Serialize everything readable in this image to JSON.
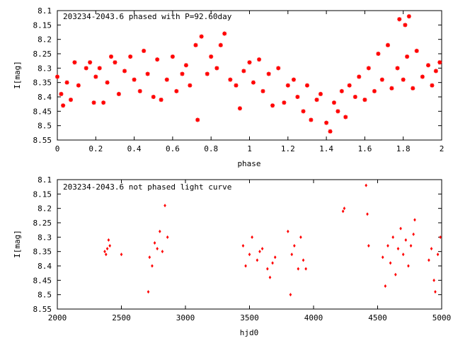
{
  "colors": {
    "marker": "#ff0000",
    "axis": "#000000",
    "background": "#ffffff"
  },
  "chart_data": [
    {
      "type": "scatter",
      "title": "203234-2043.6 phased with P=92.60day",
      "xlabel": "phase",
      "ylabel": "I[mag]",
      "xlim": [
        0,
        2
      ],
      "ylim": [
        8.55,
        8.1
      ],
      "y_inverted": true,
      "xticks": [
        0,
        0.2,
        0.4,
        0.6,
        0.8,
        1,
        1.2,
        1.4,
        1.6,
        1.8,
        2
      ],
      "xtick_labels": [
        "0",
        "0.2",
        "0.4",
        "0.6",
        "0.8",
        "1",
        "1.2",
        "1.4",
        "1.6",
        "1.8",
        "2"
      ],
      "yticks": [
        8.1,
        8.15,
        8.2,
        8.25,
        8.3,
        8.35,
        8.4,
        8.45,
        8.5,
        8.55
      ],
      "ytick_labels": [
        "8.1",
        "8.15",
        "8.2",
        "8.25",
        "8.3",
        "8.35",
        "8.4",
        "8.45",
        "8.5",
        "8.55"
      ],
      "grid": false,
      "marker": "asterisk",
      "series": [
        {
          "points": [
            [
              0.0,
              8.33
            ],
            [
              0.02,
              8.39
            ],
            [
              0.03,
              8.43
            ],
            [
              0.05,
              8.35
            ],
            [
              0.07,
              8.41
            ],
            [
              0.09,
              8.28
            ],
            [
              0.11,
              8.36
            ],
            [
              0.15,
              8.3
            ],
            [
              0.17,
              8.28
            ],
            [
              0.19,
              8.42
            ],
            [
              0.2,
              8.33
            ],
            [
              0.22,
              8.3
            ],
            [
              0.24,
              8.42
            ],
            [
              0.26,
              8.35
            ],
            [
              0.28,
              8.26
            ],
            [
              0.3,
              8.28
            ],
            [
              0.32,
              8.39
            ],
            [
              0.35,
              8.31
            ],
            [
              0.38,
              8.26
            ],
            [
              0.4,
              8.34
            ],
            [
              0.43,
              8.38
            ],
            [
              0.45,
              8.24
            ],
            [
              0.47,
              8.32
            ],
            [
              0.5,
              8.4
            ],
            [
              0.52,
              8.27
            ],
            [
              0.54,
              8.41
            ],
            [
              0.57,
              8.34
            ],
            [
              0.6,
              8.26
            ],
            [
              0.62,
              8.38
            ],
            [
              0.65,
              8.32
            ],
            [
              0.67,
              8.29
            ],
            [
              0.69,
              8.36
            ],
            [
              0.72,
              8.22
            ],
            [
              0.73,
              8.48
            ],
            [
              0.75,
              8.19
            ],
            [
              0.78,
              8.32
            ],
            [
              0.8,
              8.26
            ],
            [
              0.83,
              8.3
            ],
            [
              0.85,
              8.22
            ],
            [
              0.87,
              8.18
            ],
            [
              0.9,
              8.34
            ],
            [
              0.93,
              8.36
            ],
            [
              0.95,
              8.44
            ],
            [
              0.97,
              8.31
            ],
            [
              1.0,
              8.28
            ],
            [
              1.02,
              8.35
            ],
            [
              1.05,
              8.27
            ],
            [
              1.07,
              8.38
            ],
            [
              1.1,
              8.32
            ],
            [
              1.12,
              8.43
            ],
            [
              1.15,
              8.3
            ],
            [
              1.18,
              8.42
            ],
            [
              1.2,
              8.36
            ],
            [
              1.23,
              8.34
            ],
            [
              1.25,
              8.4
            ],
            [
              1.28,
              8.45
            ],
            [
              1.3,
              8.36
            ],
            [
              1.32,
              8.48
            ],
            [
              1.35,
              8.41
            ],
            [
              1.37,
              8.39
            ],
            [
              1.4,
              8.49
            ],
            [
              1.42,
              8.52
            ],
            [
              1.44,
              8.42
            ],
            [
              1.46,
              8.45
            ],
            [
              1.48,
              8.38
            ],
            [
              1.5,
              8.47
            ],
            [
              1.52,
              8.36
            ],
            [
              1.55,
              8.4
            ],
            [
              1.57,
              8.33
            ],
            [
              1.6,
              8.41
            ],
            [
              1.62,
              8.3
            ],
            [
              1.65,
              8.38
            ],
            [
              1.67,
              8.25
            ],
            [
              1.69,
              8.34
            ],
            [
              1.72,
              8.22
            ],
            [
              1.74,
              8.37
            ],
            [
              1.77,
              8.3
            ],
            [
              1.78,
              8.13
            ],
            [
              1.8,
              8.34
            ],
            [
              1.81,
              8.15
            ],
            [
              1.82,
              8.26
            ],
            [
              1.83,
              8.12
            ],
            [
              1.85,
              8.37
            ],
            [
              1.87,
              8.24
            ],
            [
              1.9,
              8.33
            ],
            [
              1.93,
              8.29
            ],
            [
              1.95,
              8.36
            ],
            [
              1.97,
              8.31
            ],
            [
              1.99,
              8.28
            ]
          ]
        }
      ]
    },
    {
      "type": "scatter",
      "title": "203234-2043.6 not phased light curve",
      "xlabel": "hjd0",
      "ylabel": "I[mag]",
      "xlim": [
        2000,
        5000
      ],
      "ylim": [
        8.55,
        8.1
      ],
      "y_inverted": true,
      "xticks": [
        2000,
        2500,
        3000,
        3500,
        4000,
        4500,
        5000
      ],
      "xtick_labels": [
        "2000",
        "2500",
        "3000",
        "3500",
        "4000",
        "4500",
        "5000"
      ],
      "yticks": [
        8.1,
        8.15,
        8.2,
        8.25,
        8.3,
        8.35,
        8.4,
        8.45,
        8.5,
        8.55
      ],
      "ytick_labels": [
        "8.1",
        "8.15",
        "8.2",
        "8.25",
        "8.3",
        "8.35",
        "8.4",
        "8.45",
        "8.5",
        "8.55"
      ],
      "grid": false,
      "marker": "diamond",
      "series": [
        {
          "points": [
            [
              2370,
              8.35
            ],
            [
              2380,
              8.36
            ],
            [
              2390,
              8.34
            ],
            [
              2400,
              8.31
            ],
            [
              2410,
              8.33
            ],
            [
              2500,
              8.36
            ],
            [
              2710,
              8.49
            ],
            [
              2720,
              8.37
            ],
            [
              2740,
              8.4
            ],
            [
              2760,
              8.32
            ],
            [
              2780,
              8.34
            ],
            [
              2800,
              8.28
            ],
            [
              2820,
              8.35
            ],
            [
              2840,
              8.19
            ],
            [
              2860,
              8.3
            ],
            [
              3450,
              8.33
            ],
            [
              3470,
              8.4
            ],
            [
              3500,
              8.36
            ],
            [
              3520,
              8.3
            ],
            [
              3560,
              8.38
            ],
            [
              3580,
              8.35
            ],
            [
              3600,
              8.34
            ],
            [
              3640,
              8.41
            ],
            [
              3660,
              8.44
            ],
            [
              3680,
              8.39
            ],
            [
              3700,
              8.37
            ],
            [
              3800,
              8.28
            ],
            [
              3820,
              8.5
            ],
            [
              3830,
              8.36
            ],
            [
              3850,
              8.33
            ],
            [
              3880,
              8.41
            ],
            [
              3900,
              8.3
            ],
            [
              3920,
              8.38
            ],
            [
              3940,
              8.41
            ],
            [
              4230,
              8.21
            ],
            [
              4240,
              8.2
            ],
            [
              4410,
              8.12
            ],
            [
              4420,
              8.22
            ],
            [
              4430,
              8.33
            ],
            [
              4540,
              8.37
            ],
            [
              4560,
              8.47
            ],
            [
              4580,
              8.33
            ],
            [
              4600,
              8.39
            ],
            [
              4620,
              8.3
            ],
            [
              4640,
              8.43
            ],
            [
              4660,
              8.34
            ],
            [
              4680,
              8.27
            ],
            [
              4700,
              8.36
            ],
            [
              4720,
              8.31
            ],
            [
              4740,
              8.4
            ],
            [
              4760,
              8.33
            ],
            [
              4780,
              8.29
            ],
            [
              4790,
              8.24
            ],
            [
              4900,
              8.38
            ],
            [
              4920,
              8.34
            ],
            [
              4940,
              8.45
            ],
            [
              4950,
              8.49
            ],
            [
              4970,
              8.36
            ],
            [
              4990,
              8.3
            ]
          ]
        }
      ]
    }
  ]
}
